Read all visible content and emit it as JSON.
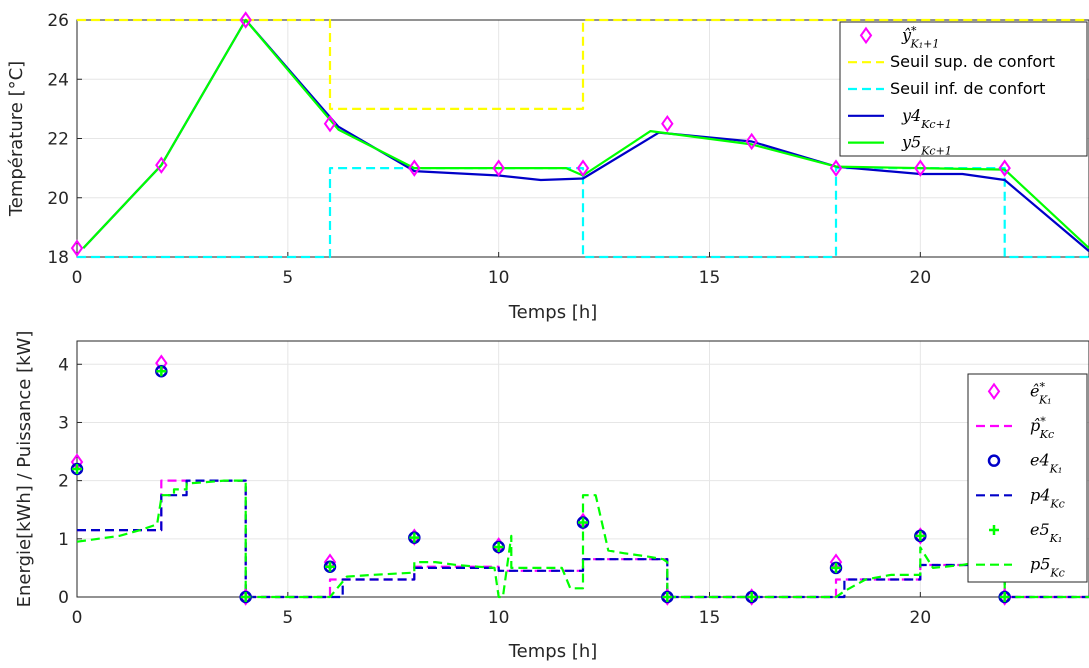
{
  "chart_data": [
    {
      "type": "line",
      "xlabel": "Temps [h]",
      "ylabel": "Température [°C]",
      "xlim": [
        0,
        24
      ],
      "ylim": [
        18,
        26
      ],
      "xticks": [
        0,
        5,
        10,
        15,
        20
      ],
      "yticks": [
        18,
        20,
        22,
        24,
        26
      ],
      "grid": true,
      "legend_position": "top-right",
      "colors": {
        "magenta": "#ff00ff",
        "yellow": "#ffff00",
        "cyan": "#00ffff",
        "blue": "#0000c8",
        "green": "#00ff00"
      },
      "series": [
        {
          "key": "yhat",
          "legend": {
            "base": "ŷ",
            "sup": "*",
            "sub": "K₁+1"
          },
          "kind": "marker-diamond",
          "color": "#ff00ff",
          "x": [
            0,
            2,
            4,
            6,
            8,
            10,
            12,
            14,
            16,
            18,
            20,
            22
          ],
          "y": [
            18.3,
            21.1,
            26.0,
            22.5,
            21.0,
            21.0,
            21.0,
            22.5,
            21.9,
            21.0,
            21.0,
            21.0
          ]
        },
        {
          "key": "sup",
          "legend": {
            "text": "Seuil sup. de confort"
          },
          "kind": "dashed",
          "color": "#ffff00",
          "x": [
            0,
            6,
            6,
            12,
            12,
            24
          ],
          "y": [
            26,
            26,
            23,
            23,
            26,
            26
          ]
        },
        {
          "key": "inf",
          "legend": {
            "text": "Seuil inf. de confort"
          },
          "kind": "dashed",
          "color": "#00ffff",
          "x": [
            0,
            6,
            6,
            12,
            12,
            18,
            18,
            22,
            22,
            24
          ],
          "y": [
            18,
            18,
            21,
            21,
            18,
            18,
            21,
            21,
            18,
            18
          ]
        },
        {
          "key": "y4",
          "legend": {
            "base": "y4",
            "sub": "K_c+1"
          },
          "kind": "solid",
          "color": "#0000c8",
          "x": [
            0.15,
            2,
            4,
            6.2,
            8,
            10,
            11,
            12,
            13.8,
            16,
            18,
            20,
            21,
            22,
            24
          ],
          "y": [
            18.3,
            21.1,
            26.0,
            22.4,
            20.9,
            20.75,
            20.6,
            20.65,
            22.2,
            21.9,
            21.05,
            20.8,
            20.8,
            20.6,
            18.2
          ]
        },
        {
          "key": "y5",
          "legend": {
            "base": "y5",
            "sub": "K_c+1"
          },
          "kind": "solid",
          "color": "#00ff00",
          "x": [
            0.15,
            2,
            4,
            6.2,
            8,
            10,
            11.6,
            12,
            13.6,
            16,
            18,
            20,
            22,
            24
          ],
          "y": [
            18.3,
            21.1,
            26.0,
            22.3,
            21.0,
            21.0,
            21.0,
            20.75,
            22.25,
            21.8,
            21.05,
            21.0,
            20.95,
            18.3
          ]
        }
      ]
    },
    {
      "type": "line",
      "xlabel": "Temps [h]",
      "ylabel": "Energie[kWh] / Puissance [kW]",
      "xlim": [
        0,
        24
      ],
      "ylim": [
        0,
        4.4
      ],
      "xticks": [
        0,
        5,
        10,
        15,
        20
      ],
      "yticks": [
        0,
        1,
        2,
        3,
        4
      ],
      "grid": true,
      "legend_position": "right",
      "series": [
        {
          "key": "ehat",
          "legend": {
            "base": "ê",
            "sup": "*",
            "sub": "K₁"
          },
          "kind": "marker-diamond",
          "color": "#ff00ff",
          "x": [
            0,
            2,
            4,
            6,
            8,
            10,
            12,
            14,
            16,
            18,
            20,
            22
          ],
          "y": [
            2.32,
            4.02,
            0.0,
            0.6,
            1.03,
            0.88,
            1.3,
            0.0,
            0.0,
            0.6,
            1.05,
            0.0
          ]
        },
        {
          "key": "phat",
          "legend": {
            "base": "p̂",
            "sup": "*",
            "sub": "K_c"
          },
          "kind": "dashed",
          "color": "#ff00ff",
          "x": [
            0,
            2,
            2,
            4,
            4,
            6,
            6,
            8,
            8,
            10,
            10,
            12,
            12,
            14,
            14,
            18,
            18,
            20,
            20,
            22,
            22,
            24
          ],
          "y": [
            1.15,
            1.15,
            2.0,
            2.0,
            0,
            0,
            0.3,
            0.3,
            0.52,
            0.52,
            0.45,
            0.45,
            0.65,
            0.65,
            0,
            0,
            0.3,
            0.3,
            0.55,
            0.55,
            0,
            0
          ]
        },
        {
          "key": "e4",
          "legend": {
            "base": "e4",
            "sub": "K₁"
          },
          "kind": "marker-circle",
          "color": "#0000c8",
          "x": [
            0,
            2,
            4,
            6,
            8,
            10,
            12,
            14,
            16,
            18,
            20,
            22
          ],
          "y": [
            2.2,
            3.88,
            0.0,
            0.52,
            1.02,
            0.86,
            1.28,
            0.0,
            0.0,
            0.5,
            1.05,
            0.0
          ]
        },
        {
          "key": "p4",
          "legend": {
            "base": "p4",
            "sub": "K_c"
          },
          "kind": "dashed",
          "color": "#0000c8",
          "x": [
            0,
            2,
            2,
            2.6,
            2.6,
            4,
            4,
            6.3,
            6.3,
            8,
            8,
            10,
            10,
            12,
            12,
            14,
            14,
            18.2,
            18.2,
            20,
            20,
            22,
            22,
            24
          ],
          "y": [
            1.15,
            1.15,
            1.75,
            1.75,
            2.0,
            2.0,
            0,
            0,
            0.3,
            0.3,
            0.5,
            0.5,
            0.45,
            0.45,
            0.65,
            0.65,
            0,
            0,
            0.3,
            0.3,
            0.55,
            0.55,
            0,
            0
          ]
        },
        {
          "key": "e5",
          "legend": {
            "base": "e5",
            "sub": "K₁"
          },
          "kind": "marker-plus",
          "color": "#00ff00",
          "x": [
            0,
            2,
            4,
            6,
            8,
            10,
            12,
            14,
            16,
            18,
            20,
            22
          ],
          "y": [
            2.2,
            3.88,
            0.0,
            0.52,
            1.02,
            0.86,
            1.28,
            0.0,
            0.0,
            0.5,
            1.05,
            0.0
          ]
        },
        {
          "key": "p5",
          "legend": {
            "base": "p5",
            "sub": "K_c"
          },
          "kind": "dashed",
          "color": "#00ff00",
          "x": [
            0,
            0.5,
            1,
            1.5,
            1.9,
            2,
            2,
            2.3,
            2.3,
            2.6,
            2.6,
            3,
            3.5,
            4,
            4,
            6,
            6.4,
            7,
            8,
            8,
            8.5,
            9,
            9.5,
            9.9,
            10,
            10.1,
            10.3,
            10.3,
            11,
            11.5,
            11.7,
            12,
            12,
            12.3,
            12.6,
            13,
            13.5,
            13.9,
            14,
            14,
            18,
            18.2,
            18.7,
            19.3,
            20,
            20,
            20.3,
            21,
            21.5,
            22,
            22,
            24
          ],
          "y": [
            0.95,
            1.0,
            1.05,
            1.15,
            1.25,
            1.7,
            1.75,
            1.75,
            1.85,
            1.85,
            1.95,
            1.97,
            2.0,
            2.0,
            0,
            0,
            0.35,
            0.38,
            0.42,
            0.6,
            0.6,
            0.55,
            0.52,
            0.5,
            0,
            0,
            1.05,
            0.5,
            0.5,
            0.5,
            0.15,
            0.15,
            1.75,
            1.75,
            0.8,
            0.75,
            0.7,
            0.65,
            0.6,
            0,
            0,
            0.1,
            0.3,
            0.38,
            0.38,
            0.85,
            0.5,
            0.55,
            0.62,
            0.7,
            0,
            0
          ]
        }
      ]
    }
  ]
}
